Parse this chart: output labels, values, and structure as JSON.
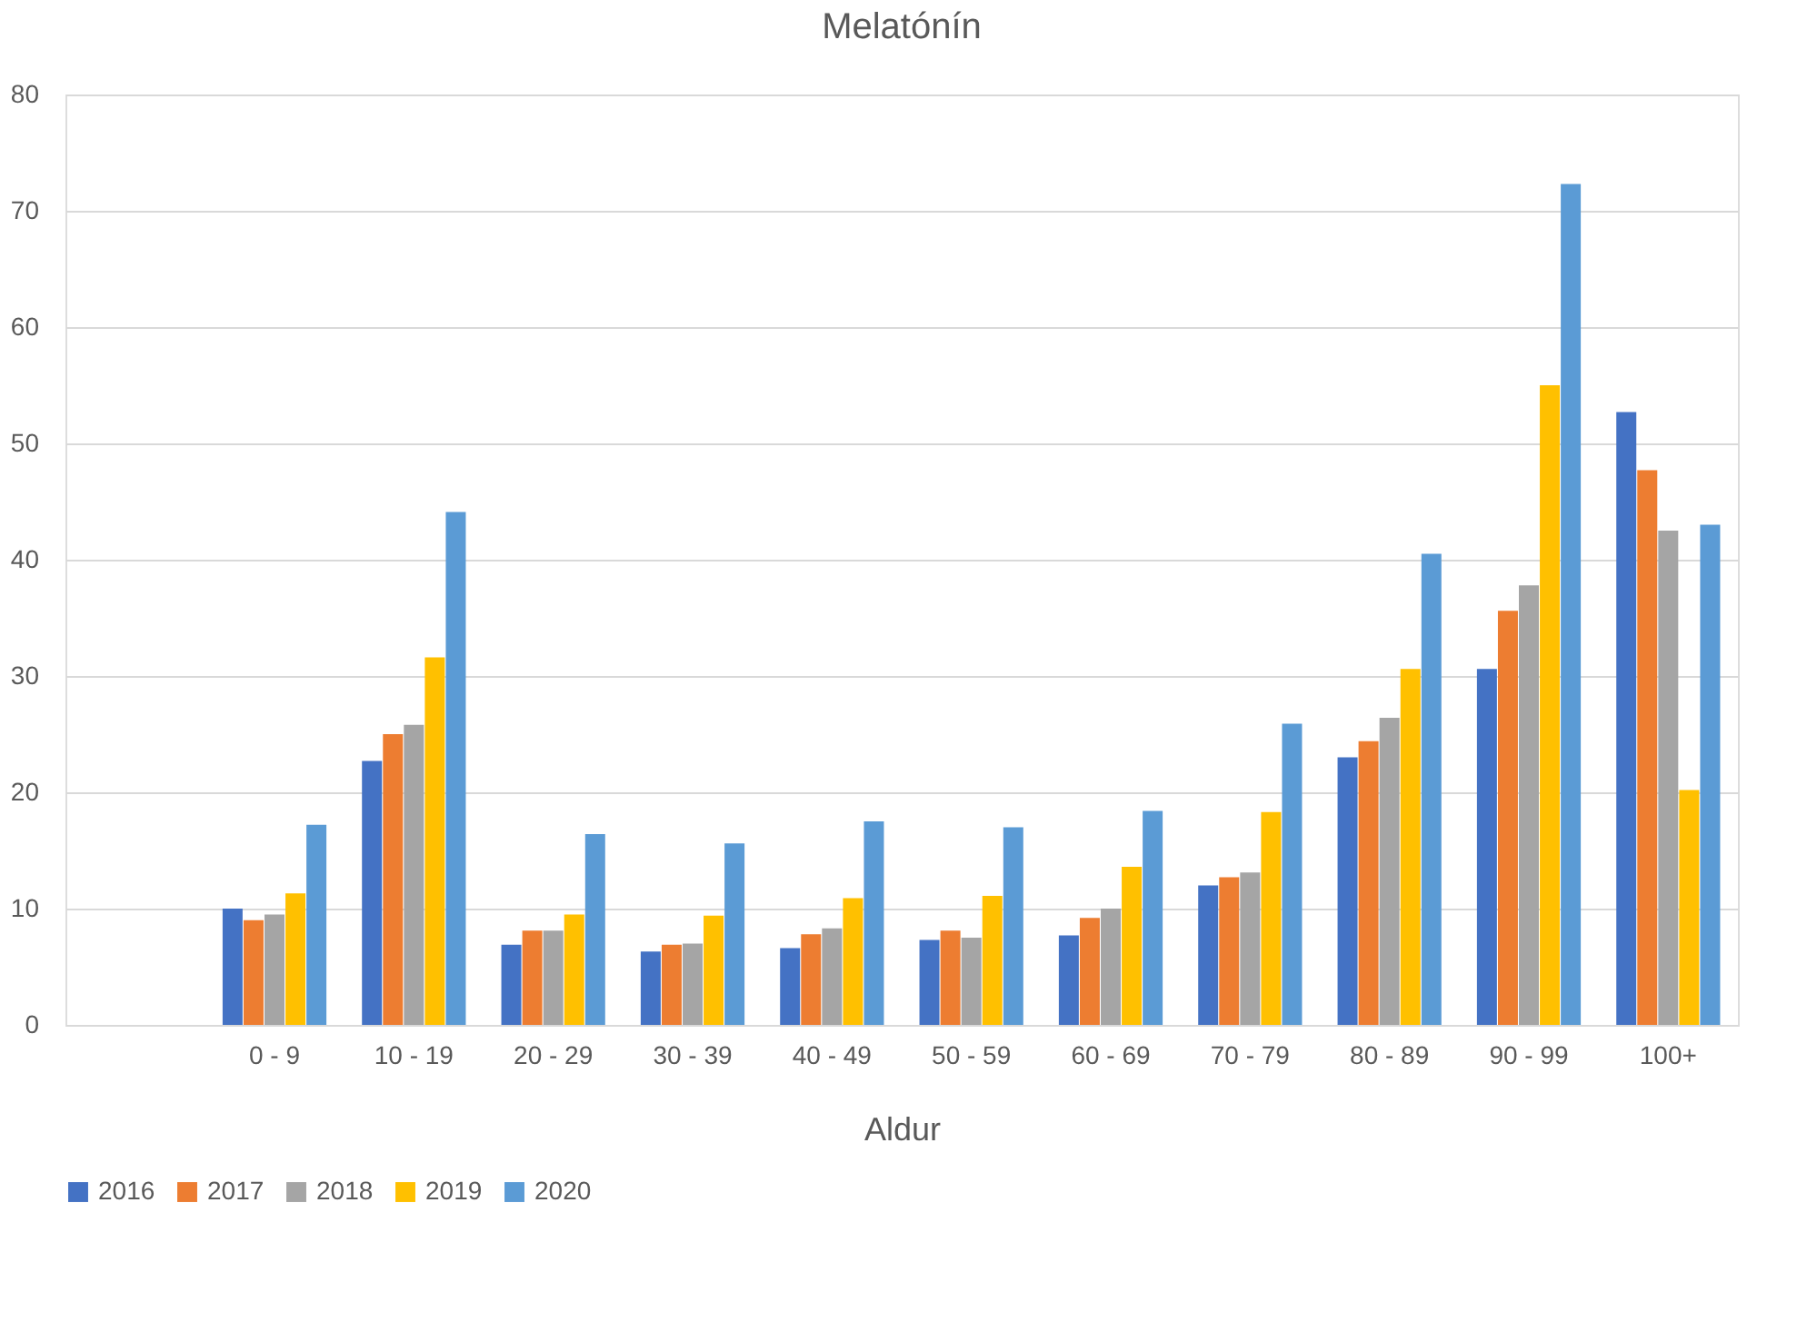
{
  "chart_data": {
    "type": "bar",
    "title": "Melatónín",
    "xlabel": "Aldur",
    "categories": [
      null,
      "0 - 9",
      "10 - 19",
      "20 - 29",
      "30 - 39",
      "40 - 49",
      "50 - 59",
      "60 - 69",
      "70 - 79",
      "80 - 89",
      "90 - 99",
      "100+"
    ],
    "series": [
      {
        "name": "2016",
        "color": "#4472c4",
        "values": [
          null,
          10.0,
          22.7,
          6.9,
          6.3,
          6.6,
          7.3,
          7.7,
          12.0,
          23.0,
          30.6,
          52.7
        ]
      },
      {
        "name": "2017",
        "color": "#ed7d31",
        "values": [
          null,
          9.0,
          25.0,
          8.1,
          6.9,
          7.8,
          8.1,
          9.2,
          12.7,
          24.4,
          35.6,
          47.7
        ]
      },
      {
        "name": "2018",
        "color": "#a5a5a5",
        "values": [
          null,
          9.5,
          25.8,
          8.1,
          7.0,
          8.3,
          7.5,
          10.0,
          13.1,
          26.4,
          37.8,
          42.5
        ]
      },
      {
        "name": "2019",
        "color": "#ffc000",
        "values": [
          null,
          11.3,
          31.6,
          9.5,
          9.4,
          10.9,
          11.1,
          13.6,
          18.3,
          30.6,
          55.0,
          20.2
        ]
      },
      {
        "name": "2020",
        "color": "#5b9bd5",
        "values": [
          null,
          17.2,
          44.1,
          16.4,
          15.6,
          17.5,
          17.0,
          18.4,
          25.9,
          40.5,
          72.3,
          43.0
        ]
      }
    ],
    "ylim": [
      0,
      80
    ],
    "yticks": [
      0,
      10,
      20,
      30,
      40,
      50,
      60,
      70,
      80
    ],
    "grid": "y",
    "legend": "bottom"
  }
}
